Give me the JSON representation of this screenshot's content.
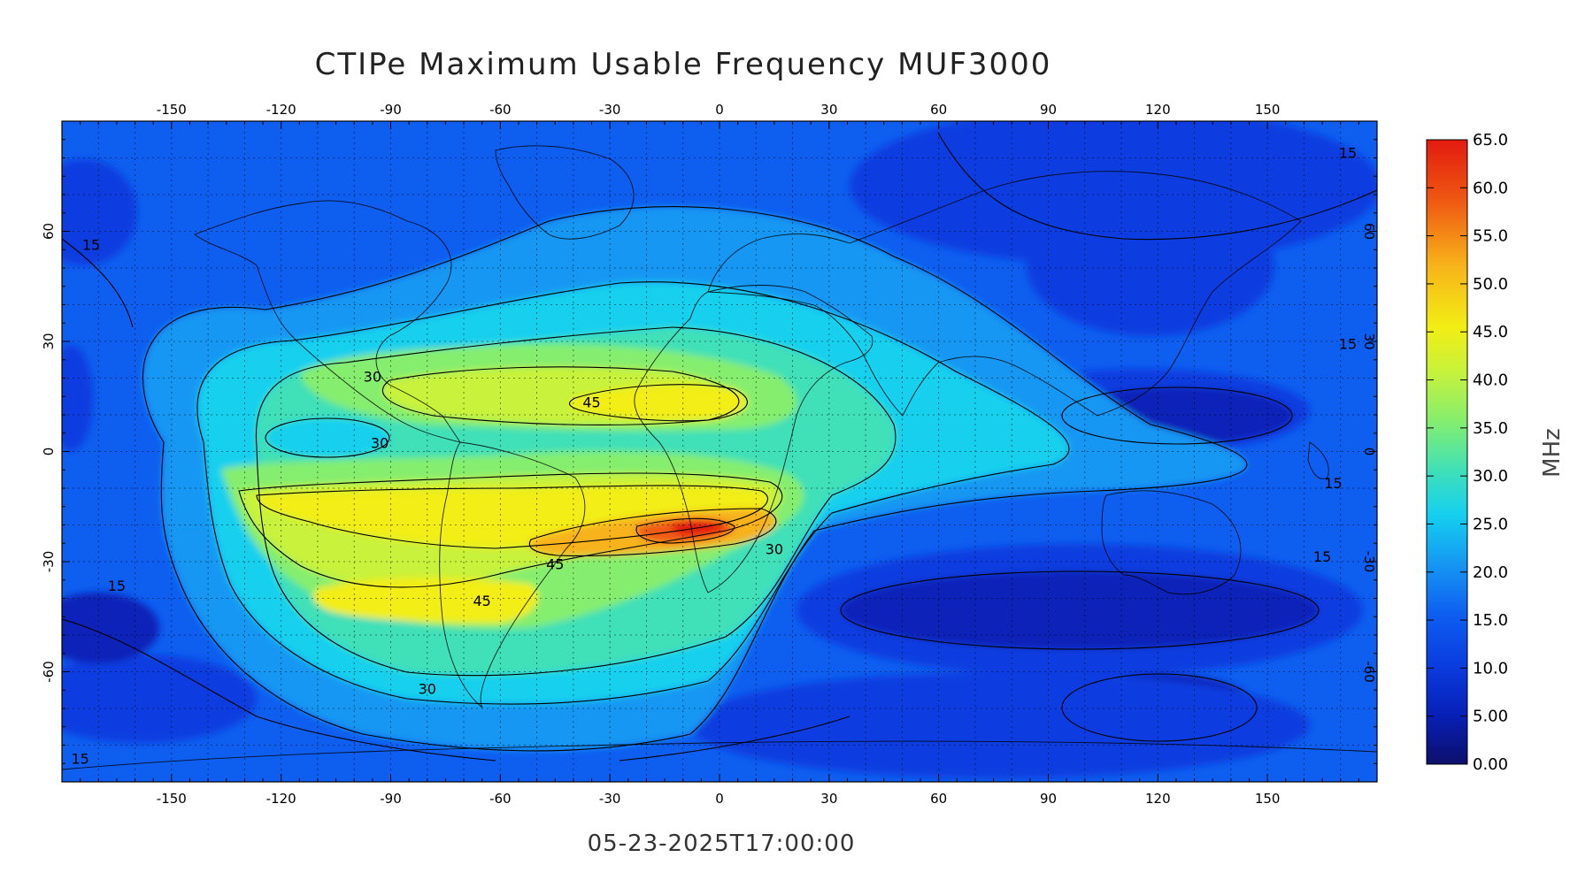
{
  "title": "CTIPe Maximum Usable Frequency MUF3000",
  "timestamp": "05-23-2025T17:00:00",
  "map": {
    "lon_range": [
      -180,
      180
    ],
    "lat_range": [
      -90,
      90
    ],
    "lon_ticks": [
      "-150",
      "-120",
      "-90",
      "-60",
      "-30",
      "0",
      "30",
      "60",
      "90",
      "120",
      "150"
    ],
    "lat_ticks": [
      "60",
      "30",
      "0",
      "-30",
      "-60"
    ],
    "grid": true,
    "colormap": [
      "#0c0f6b",
      "#0720b8",
      "#0a3de0",
      "#0e5ef0",
      "#1597f3",
      "#15d0ee",
      "#3fe0b8",
      "#85ee6e",
      "#c8f23a",
      "#f2ee14",
      "#f7b21a",
      "#ef5a12",
      "#e31a10"
    ]
  },
  "colorbar": {
    "label": "MHz",
    "ticks": [
      "65.0",
      "60.0",
      "55.0",
      "50.0",
      "45.0",
      "40.0",
      "35.0",
      "30.0",
      "25.0",
      "20.0",
      "15.0",
      "10.0",
      "5.00",
      "0.00"
    ]
  },
  "contour_labels": [
    {
      "text": "45",
      "lon": -35,
      "lat": 12
    },
    {
      "text": "45",
      "lon": -45,
      "lat": -32
    },
    {
      "text": "45",
      "lon": -65,
      "lat": -42
    },
    {
      "text": "30",
      "lon": -95,
      "lat": 19
    },
    {
      "text": "30",
      "lon": -93,
      "lat": 1
    },
    {
      "text": "30",
      "lon": 15,
      "lat": -28
    },
    {
      "text": "30",
      "lon": -80,
      "lat": -66
    },
    {
      "text": "15",
      "lon": -165,
      "lat": -38
    },
    {
      "text": "15",
      "lon": -172,
      "lat": 55
    },
    {
      "text": "15",
      "lon": 172,
      "lat": 80
    },
    {
      "text": "15",
      "lon": 172,
      "lat": 28
    },
    {
      "text": "15",
      "lon": 168,
      "lat": -10
    },
    {
      "text": "15",
      "lon": 165,
      "lat": -30
    },
    {
      "text": "15",
      "lon": -175,
      "lat": -85
    }
  ]
}
